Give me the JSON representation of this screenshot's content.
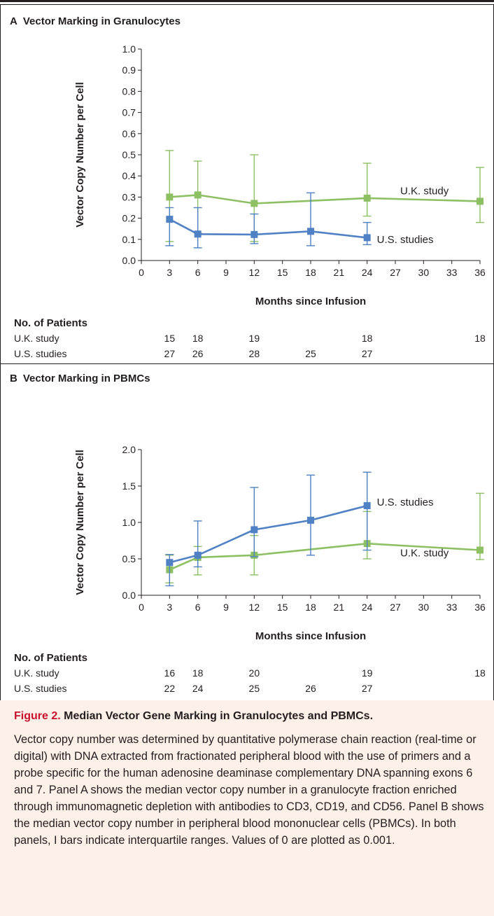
{
  "chart_data": [
    {
      "type": "line",
      "panel_letter": "A",
      "title": "Vector Marking in Granulocytes",
      "xlabel": "Months since Infusion",
      "ylabel": "Vector Copy Number per Cell",
      "xlim": [
        0,
        36
      ],
      "ylim": [
        0,
        1.0
      ],
      "x_ticks": [
        0,
        3,
        6,
        9,
        12,
        15,
        18,
        21,
        24,
        27,
        30,
        33,
        36
      ],
      "y_ticks": [
        0.0,
        0.1,
        0.2,
        0.3,
        0.4,
        0.5,
        0.6,
        0.7,
        0.8,
        0.9,
        1.0
      ],
      "y_tick_labels": [
        "0.0",
        "0.1",
        "0.2",
        "0.3",
        "0.4",
        "0.5",
        "0.6",
        "0.7",
        "0.8",
        "0.9",
        "1.0"
      ],
      "grid": false,
      "series": [
        {
          "name": "U.K. study",
          "color": "#8cc063",
          "x": [
            3,
            6,
            12,
            24,
            36
          ],
          "y": [
            0.3,
            0.31,
            0.27,
            0.295,
            0.28
          ],
          "err_low": [
            0.09,
            0.13,
            0.09,
            0.21,
            0.18
          ],
          "err_high": [
            0.52,
            0.47,
            0.5,
            0.46,
            0.44
          ]
        },
        {
          "name": "U.S. studies",
          "color": "#4f81c4",
          "x": [
            3,
            6,
            12,
            18,
            24
          ],
          "y": [
            0.195,
            0.125,
            0.123,
            0.138,
            0.108
          ],
          "err_low": [
            0.07,
            0.06,
            0.08,
            0.07,
            0.075
          ],
          "err_high": [
            0.25,
            0.25,
            0.22,
            0.32,
            0.18
          ]
        }
      ],
      "patients": {
        "header": "No. of Patients",
        "rows": [
          {
            "label": "U.K. study",
            "x": [
              3,
              6,
              12,
              24,
              36
            ],
            "counts": [
              "15",
              "18",
              "19",
              "18",
              "18"
            ]
          },
          {
            "label": "U.S. studies",
            "x": [
              3,
              6,
              12,
              18,
              24
            ],
            "counts": [
              "27",
              "26",
              "28",
              "25",
              "27"
            ]
          }
        ]
      }
    },
    {
      "type": "line",
      "panel_letter": "B",
      "title": "Vector Marking in PBMCs",
      "xlabel": "Months since Infusion",
      "ylabel": "Vector Copy Number per Cell",
      "xlim": [
        0,
        36
      ],
      "ylim": [
        0,
        2.0
      ],
      "x_ticks": [
        0,
        3,
        6,
        9,
        12,
        15,
        18,
        21,
        24,
        27,
        30,
        33,
        36
      ],
      "y_ticks": [
        0.0,
        0.5,
        1.0,
        1.5,
        2.0
      ],
      "y_tick_labels": [
        "0.0",
        "0.5",
        "1.0",
        "1.5",
        "2.0"
      ],
      "grid": false,
      "series": [
        {
          "name": "U.K. study",
          "color": "#8cc063",
          "x": [
            3,
            6,
            12,
            24,
            36
          ],
          "y": [
            0.35,
            0.52,
            0.55,
            0.71,
            0.62
          ],
          "err_low": [
            0.17,
            0.28,
            0.28,
            0.5,
            0.49
          ],
          "err_high": [
            0.55,
            0.67,
            0.82,
            1.15,
            1.4
          ]
        },
        {
          "name": "U.S. studies",
          "color": "#4f81c4",
          "x": [
            3,
            6,
            12,
            18,
            24
          ],
          "y": [
            0.45,
            0.55,
            0.9,
            1.03,
            1.23
          ],
          "err_low": [
            0.13,
            0.39,
            0.53,
            0.55,
            0.62
          ],
          "err_high": [
            0.56,
            1.02,
            1.48,
            1.65,
            1.69
          ]
        }
      ],
      "patients": {
        "header": "No. of Patients",
        "rows": [
          {
            "label": "U.K. study",
            "x": [
              3,
              6,
              12,
              24,
              36
            ],
            "counts": [
              "16",
              "18",
              "20",
              "19",
              "18"
            ]
          },
          {
            "label": "U.S. studies",
            "x": [
              3,
              6,
              12,
              18,
              24
            ],
            "counts": [
              "22",
              "24",
              "25",
              "26",
              "27"
            ]
          }
        ]
      }
    }
  ],
  "caption": {
    "figure_label": "Figure 2.",
    "title": " Median Vector Gene Marking in Granulocytes and PBMCs.",
    "body": "Vector copy number was determined by quantitative polymerase chain reaction (real-time or digital) with DNA extracted from fractionated peripheral blood with the use of primers and a probe specific for the human adenosine deaminase complementary DNA spanning exons 6 and 7. Panel A shows the median vector copy number in a granulocyte fraction enriched through immunomagnetic depletion with antibodies to CD3, CD19, and CD56. Panel B shows the median vector copy number in peripheral blood mononuclear cells (PBMCs). In both panels, I bars indicate interquartile ranges. Values of 0 are plotted as 0.001."
  }
}
